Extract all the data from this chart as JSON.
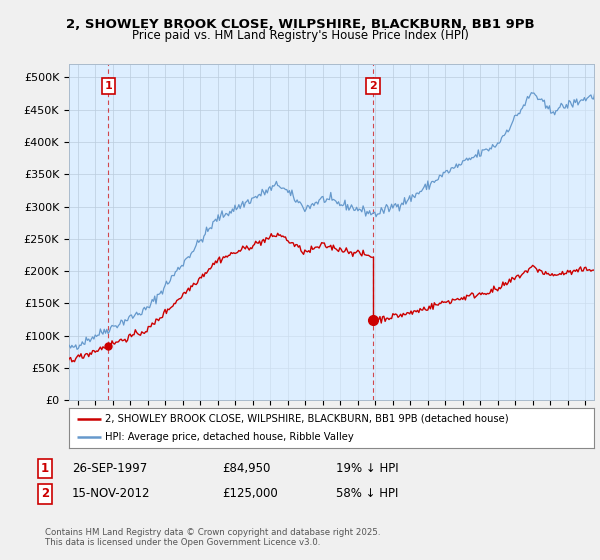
{
  "title1": "2, SHOWLEY BROOK CLOSE, WILPSHIRE, BLACKBURN, BB1 9PB",
  "title2": "Price paid vs. HM Land Registry's House Price Index (HPI)",
  "xlim_start": 1995.5,
  "xlim_end": 2025.5,
  "ylim_min": 0,
  "ylim_max": 520000,
  "yticks": [
    0,
    50000,
    100000,
    150000,
    200000,
    250000,
    300000,
    350000,
    400000,
    450000,
    500000
  ],
  "ytick_labels": [
    "£0",
    "£50K",
    "£100K",
    "£150K",
    "£200K",
    "£250K",
    "£300K",
    "£350K",
    "£400K",
    "£450K",
    "£500K"
  ],
  "purchase1_year": 1997.74,
  "purchase1_price": 84950,
  "purchase2_year": 2012.88,
  "purchase2_price": 125000,
  "hpi_color": "#6699cc",
  "hpi_fill_color": "#ddeeff",
  "property_color": "#cc0000",
  "vline_color": "#cc0000",
  "legend_label1": "2, SHOWLEY BROOK CLOSE, WILPSHIRE, BLACKBURN, BB1 9PB (detached house)",
  "legend_label2": "HPI: Average price, detached house, Ribble Valley",
  "table_row1": [
    "1",
    "26-SEP-1997",
    "£84,950",
    "19% ↓ HPI"
  ],
  "table_row2": [
    "2",
    "15-NOV-2012",
    "£125,000",
    "58% ↓ HPI"
  ],
  "footnote": "Contains HM Land Registry data © Crown copyright and database right 2025.\nThis data is licensed under the Open Government Licence v3.0.",
  "background_color": "#f0f0f0",
  "plot_bg_color": "#ddeeff"
}
